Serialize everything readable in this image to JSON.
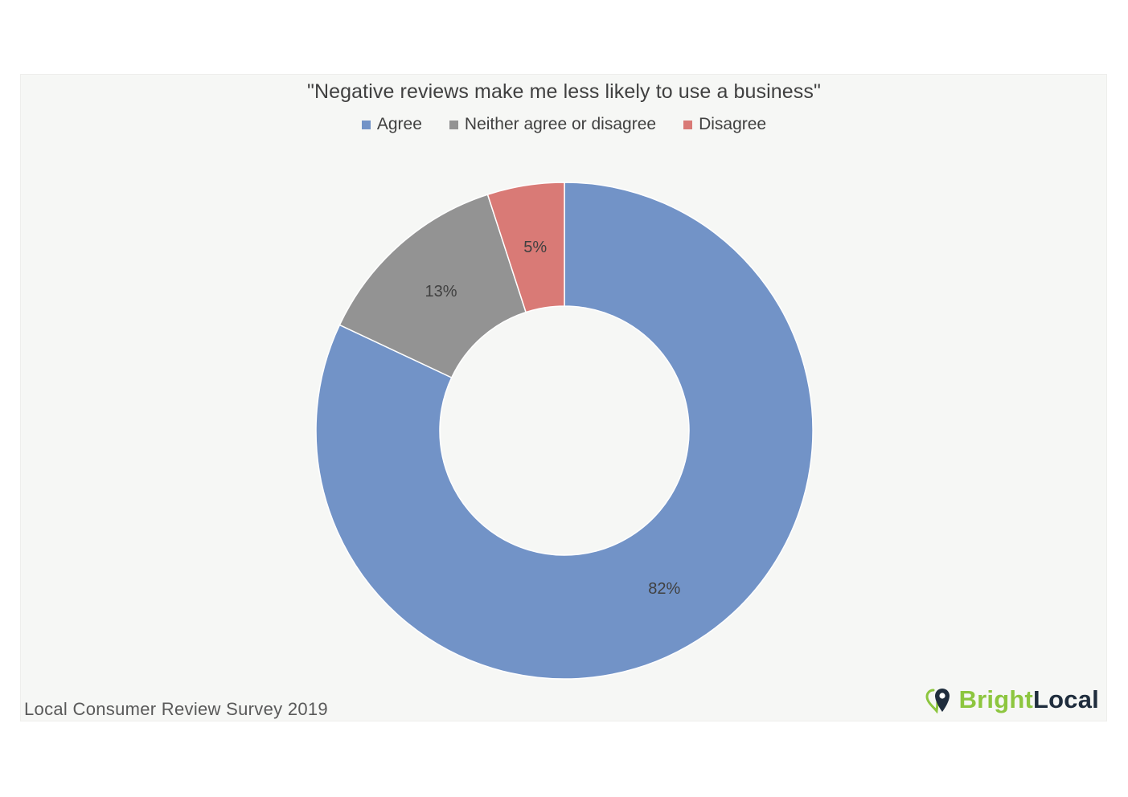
{
  "chart_data": {
    "type": "pie",
    "title": "\"Negative reviews make me less likely to use a business\"",
    "categories": [
      "Agree",
      "Neither agree or disagree",
      "Disagree"
    ],
    "values": [
      82,
      13,
      5
    ],
    "labels": [
      "82%",
      "13%",
      "5%"
    ],
    "colors": [
      "#7293c7",
      "#939393",
      "#d97a76"
    ],
    "legend": "top"
  },
  "footer": {
    "source": "Local Consumer Review Survey 2019"
  },
  "brand": {
    "part1": "Bright",
    "part2": "Local",
    "icon": "map-pin-heart-icon"
  }
}
